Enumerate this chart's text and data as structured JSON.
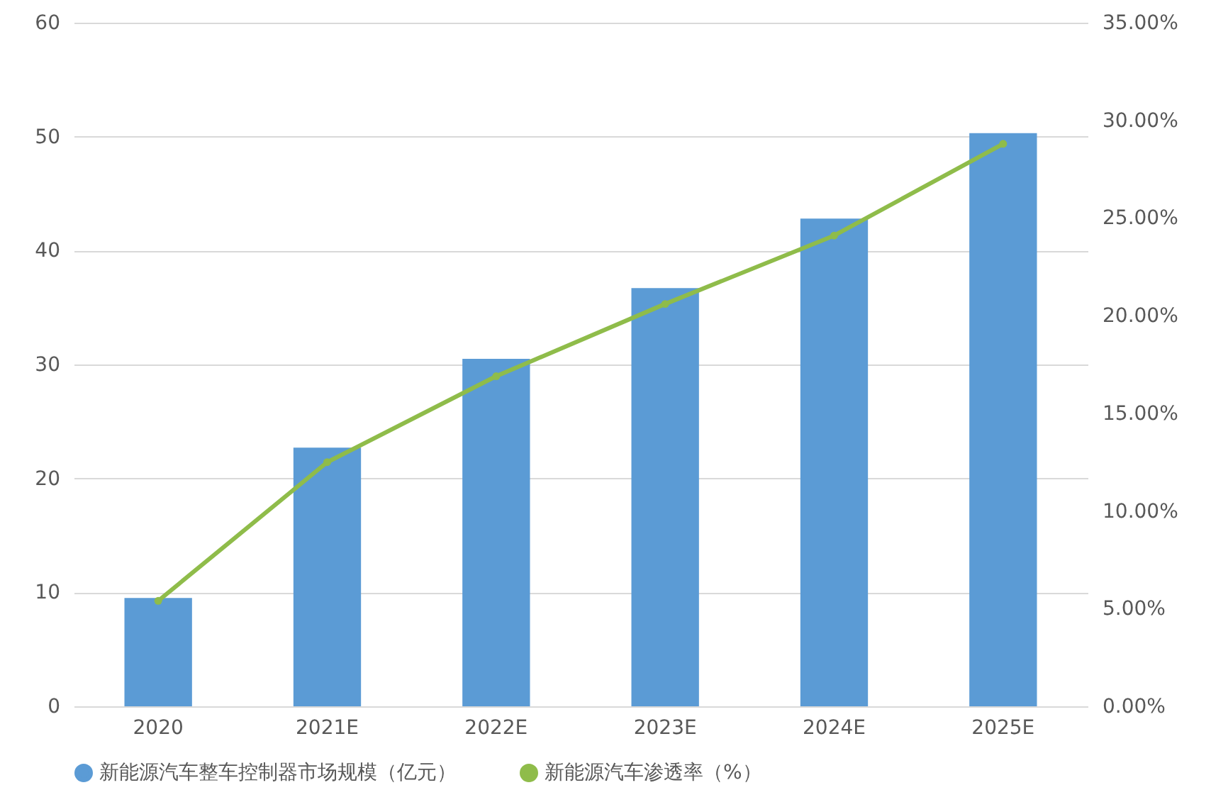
{
  "chart_data": {
    "type": "bar",
    "categories": [
      "2020",
      "2021E",
      "2022E",
      "2023E",
      "2024E",
      "2025E"
    ],
    "series": [
      {
        "name": "新能源汽车整车控制器市场规模（亿元）",
        "color": "#5b9bd5",
        "values": [
          9.5,
          22.7,
          30.5,
          36.7,
          42.8,
          50.3
        ]
      },
      {
        "name": "新能源汽车渗透率（%）",
        "type": "line",
        "axis": "y2",
        "color": "#8fbc4a",
        "values": [
          5.4,
          12.5,
          16.9,
          20.6,
          24.1,
          28.8
        ]
      }
    ],
    "ylim": [
      0,
      60
    ],
    "yticks": [
      0,
      10,
      20,
      30,
      40,
      50,
      60
    ],
    "y2lim": [
      0,
      35
    ],
    "y2ticks": [
      {
        "value": 0,
        "label": "0.00%"
      },
      {
        "value": 5,
        "label": "5.00%"
      },
      {
        "value": 10,
        "label": "10.00%"
      },
      {
        "value": 15,
        "label": "15.00%"
      },
      {
        "value": 20,
        "label": "20.00%"
      },
      {
        "value": 25,
        "label": "25.00%"
      },
      {
        "value": 30,
        "label": "30.00%"
      },
      {
        "value": 35,
        "label": "35.00%"
      }
    ],
    "grid": "y",
    "legend": "bottom",
    "marker": "circle",
    "line_style": "solid"
  }
}
